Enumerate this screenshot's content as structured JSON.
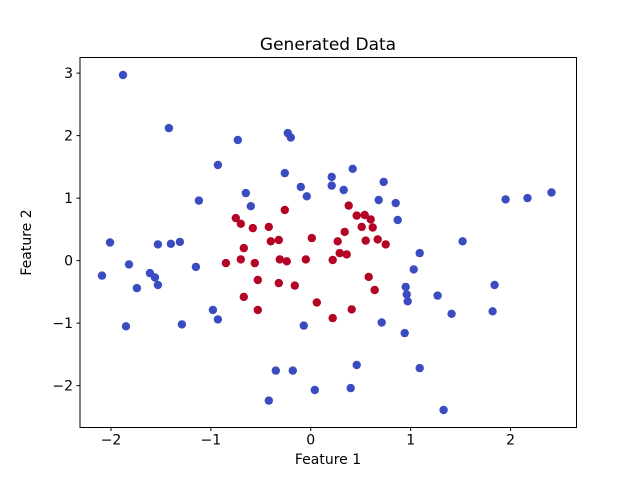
{
  "chart_data": {
    "type": "scatter",
    "title": "Generated Data",
    "xlabel": "Feature 1",
    "ylabel": "Feature 2",
    "xlim": [
      -2.31,
      2.66
    ],
    "ylim": [
      -2.67,
      3.25
    ],
    "xticks": [
      -2,
      -1,
      0,
      1,
      2
    ],
    "xtick_labels": [
      "−2",
      "−1",
      "0",
      "1",
      "2"
    ],
    "yticks": [
      -2,
      -1,
      0,
      1,
      2,
      3
    ],
    "ytick_labels": [
      "−2",
      "−1",
      "0",
      "1",
      "2",
      "3"
    ],
    "grid": false,
    "legend": null,
    "marker": {
      "shape": "circle",
      "radius_px": 4.2
    },
    "series": [
      {
        "name": "blue",
        "color": "#3B4CC0",
        "points": [
          [
            -1.88,
            2.97
          ],
          [
            -1.42,
            2.12
          ],
          [
            -0.73,
            1.93
          ],
          [
            -0.23,
            2.04
          ],
          [
            -0.2,
            1.97
          ],
          [
            -0.93,
            1.53
          ],
          [
            -0.26,
            1.4
          ],
          [
            -0.1,
            1.18
          ],
          [
            -0.04,
            1.03
          ],
          [
            0.21,
            1.34
          ],
          [
            0.21,
            1.2
          ],
          [
            0.33,
            1.13
          ],
          [
            -0.65,
            1.08
          ],
          [
            -0.6,
            0.87
          ],
          [
            -1.12,
            0.96
          ],
          [
            0.42,
            1.47
          ],
          [
            0.73,
            1.26
          ],
          [
            0.68,
            0.97
          ],
          [
            0.85,
            0.92
          ],
          [
            0.87,
            0.65
          ],
          [
            1.95,
            0.98
          ],
          [
            2.17,
            1.0
          ],
          [
            2.41,
            1.09
          ],
          [
            1.52,
            0.31
          ],
          [
            -2.01,
            0.29
          ],
          [
            -1.53,
            0.26
          ],
          [
            -1.4,
            0.27
          ],
          [
            -1.31,
            0.3
          ],
          [
            -1.82,
            -0.06
          ],
          [
            -2.09,
            -0.24
          ],
          [
            -1.61,
            -0.2
          ],
          [
            -1.56,
            -0.27
          ],
          [
            -1.53,
            -0.39
          ],
          [
            -1.74,
            -0.44
          ],
          [
            -1.15,
            -0.1
          ],
          [
            -0.98,
            -0.79
          ],
          [
            -0.93,
            -0.94
          ],
          [
            -1.85,
            -1.05
          ],
          [
            -1.29,
            -1.02
          ],
          [
            -0.07,
            -1.04
          ],
          [
            -0.35,
            -1.76
          ],
          [
            -0.18,
            -1.76
          ],
          [
            0.04,
            -2.07
          ],
          [
            -0.42,
            -2.24
          ],
          [
            1.09,
            0.12
          ],
          [
            1.03,
            -0.14
          ],
          [
            0.95,
            -0.42
          ],
          [
            0.96,
            -0.54
          ],
          [
            0.97,
            -0.65
          ],
          [
            1.27,
            -0.56
          ],
          [
            1.84,
            -0.39
          ],
          [
            1.41,
            -0.85
          ],
          [
            1.82,
            -0.81
          ],
          [
            0.71,
            -0.99
          ],
          [
            0.94,
            -1.16
          ],
          [
            0.46,
            -1.67
          ],
          [
            1.09,
            -1.72
          ],
          [
            0.4,
            -2.04
          ],
          [
            1.33,
            -2.39
          ]
        ]
      },
      {
        "name": "red",
        "color": "#B40426",
        "points": [
          [
            -0.67,
            0.2
          ],
          [
            -0.4,
            0.31
          ],
          [
            -0.32,
            0.33
          ],
          [
            -0.85,
            -0.04
          ],
          [
            -0.7,
            0.02
          ],
          [
            -0.56,
            -0.04
          ],
          [
            -0.31,
            0.02
          ],
          [
            -0.24,
            -0.01
          ],
          [
            -0.53,
            -0.31
          ],
          [
            -0.32,
            -0.36
          ],
          [
            -0.16,
            -0.4
          ],
          [
            -0.67,
            -0.58
          ],
          [
            -0.53,
            -0.79
          ],
          [
            -0.26,
            0.81
          ],
          [
            -0.75,
            0.68
          ],
          [
            -0.7,
            0.59
          ],
          [
            -0.58,
            0.52
          ],
          [
            -0.42,
            0.54
          ],
          [
            0.01,
            0.36
          ],
          [
            -0.05,
            0.02
          ],
          [
            0.22,
            0.01
          ],
          [
            0.29,
            0.12
          ],
          [
            0.36,
            0.1
          ],
          [
            0.34,
            0.46
          ],
          [
            0.27,
            0.31
          ],
          [
            0.55,
            0.32
          ],
          [
            0.67,
            0.34
          ],
          [
            0.75,
            0.26
          ],
          [
            0.38,
            0.88
          ],
          [
            0.46,
            0.72
          ],
          [
            0.54,
            0.73
          ],
          [
            0.6,
            0.66
          ],
          [
            0.51,
            0.54
          ],
          [
            0.62,
            0.53
          ],
          [
            0.58,
            -0.26
          ],
          [
            0.64,
            -0.47
          ],
          [
            0.41,
            -0.78
          ],
          [
            0.22,
            -0.92
          ],
          [
            0.06,
            -0.67
          ]
        ]
      }
    ]
  }
}
